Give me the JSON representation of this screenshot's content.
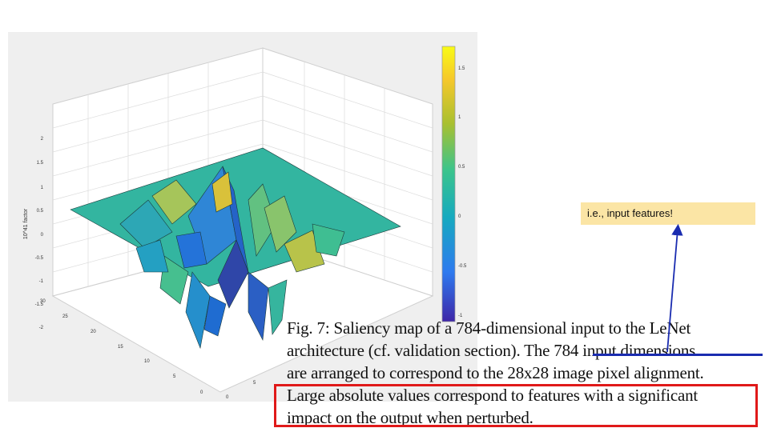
{
  "figure": {
    "z_axis_label": "10^41 factor",
    "z_ticks": [
      "2",
      "1.5",
      "1",
      "0.5",
      "0",
      "-0.5",
      "-1",
      "-1.5",
      "-2"
    ],
    "y_ticks": [
      "30",
      "25",
      "20",
      "15",
      "10",
      "5",
      "0"
    ],
    "x_ticks": [
      "0",
      "5"
    ],
    "colorbar_ticks": [
      "1.5",
      "1",
      "0.5",
      "0",
      "-0.5",
      "-1"
    ],
    "colormap": [
      "#3e26a8",
      "#2e7aef",
      "#16aabf",
      "#3bc48c",
      "#a9c030",
      "#f6c82b",
      "#f9fb15"
    ]
  },
  "caption": {
    "lines": [
      "Fig. 7: Saliency map of a 784-dimensional input to the LeNet",
      "architecture (cf. validation section). The 784 input dimensions",
      "are arranged to correspond to the 28x28 image pixel alignment.",
      "Large absolute values correspond to features with a significant",
      "impact on the output when perturbed."
    ]
  },
  "annotation": {
    "callout_text": "i.e., input features!",
    "underline_color": "#1a2cb0",
    "arrow_color": "#1a2cb0",
    "highlight_color": "#e01919",
    "callout_color": "#fbe5a5"
  }
}
